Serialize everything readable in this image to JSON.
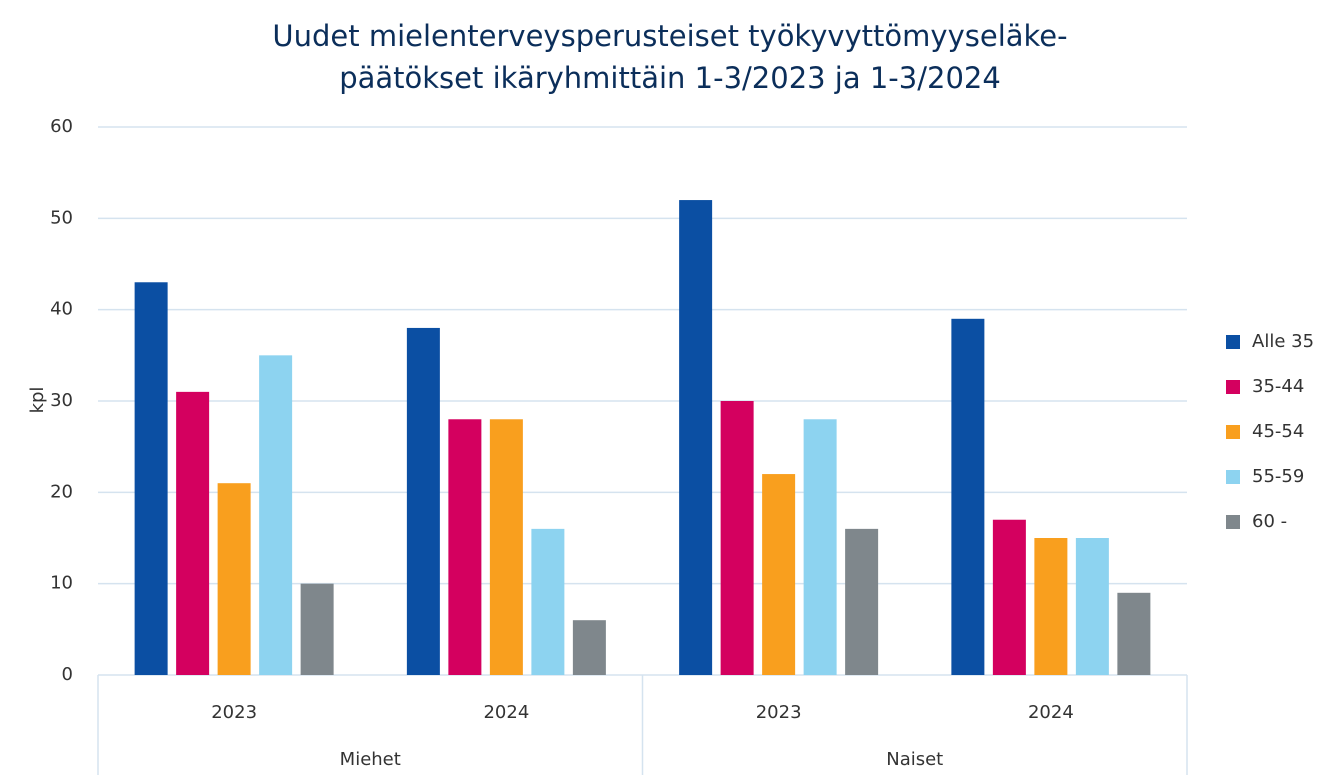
{
  "chart_data": {
    "type": "bar",
    "title": [
      "Uudet mielenterveysperusteiset työkyvyttömyyseläke-",
      "päätökset ikäryhmittäin 1-3/2023 ja 1-3/2024"
    ],
    "y_label": "kpl",
    "groups": [
      {
        "name": "Miehet",
        "categories": [
          "2023",
          "2024"
        ]
      },
      {
        "name": "Naiset",
        "categories": [
          "2023",
          "2024"
        ]
      }
    ],
    "series": [
      {
        "name": "Alle 35",
        "color": "#0b4fa3",
        "values": [
          43,
          38,
          52,
          39
        ]
      },
      {
        "name": "35-44",
        "color": "#d4005f",
        "values": [
          31,
          28,
          30,
          17
        ]
      },
      {
        "name": "45-54",
        "color": "#f99f1e",
        "values": [
          21,
          28,
          22,
          15
        ]
      },
      {
        "name": "55-59",
        "color": "#8dd3f0",
        "values": [
          35,
          16,
          28,
          15
        ]
      },
      {
        "name": "60 -",
        "color": "#7f878c",
        "values": [
          10,
          6,
          16,
          9
        ]
      }
    ],
    "ylim": [
      0,
      60
    ],
    "yticks": [
      0,
      10,
      20,
      30,
      40,
      50,
      60
    ],
    "grid": true,
    "legend": "right"
  }
}
